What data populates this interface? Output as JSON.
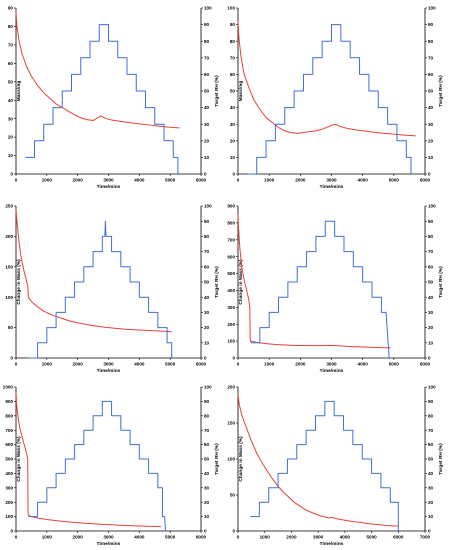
{
  "figure": {
    "colors": {
      "mass": "#e8403a",
      "rh": "#3f6fd6",
      "axis": "#000000"
    }
  },
  "chart_data": [
    {
      "type": "line",
      "xlabel": "Time/mins",
      "ylabel": "Mass/mg",
      "y2label": "Target RH (%)",
      "xlim": [
        0,
        6000
      ],
      "ylim": [
        0,
        90
      ],
      "y2lim": [
        0,
        100
      ],
      "xticks": [
        "0",
        "1000",
        "2000",
        "3000",
        "4000",
        "5000",
        "6000"
      ],
      "yticks": [
        "0",
        "10",
        "20",
        "30",
        "40",
        "50",
        "60",
        "70",
        "80",
        "90"
      ],
      "y2ticks": [
        "0",
        "10",
        "20",
        "30",
        "40",
        "50",
        "60",
        "70",
        "80",
        "90",
        "100"
      ],
      "series": [
        {
          "axis": "left",
          "x": [
            0,
            30,
            100,
            200,
            350,
            500,
            700,
            900,
            1100,
            1300,
            1500,
            1700,
            1900,
            2100,
            2300,
            2500,
            2650,
            2750,
            2900,
            3100,
            3400,
            3700,
            4000,
            4300,
            4600,
            4900,
            5100,
            5300
          ],
          "y": [
            88,
            80,
            72,
            65,
            58,
            53,
            48,
            44,
            41,
            38,
            36,
            34,
            32,
            30.5,
            29.5,
            29,
            30.5,
            31.5,
            30.2,
            29.3,
            28.5,
            27.8,
            27.2,
            26.6,
            26.0,
            25.5,
            25.2,
            25.0
          ]
        },
        {
          "axis": "right",
          "x": [
            300,
            600,
            600,
            900,
            900,
            1200,
            1200,
            1500,
            1500,
            1800,
            1800,
            2100,
            2100,
            2400,
            2400,
            2700,
            2700,
            3000,
            3000,
            3300,
            3300,
            3600,
            3600,
            3900,
            3900,
            4200,
            4200,
            4500,
            4500,
            4800,
            4800,
            5100,
            5100,
            5250,
            5250
          ],
          "y": [
            10,
            10,
            20,
            20,
            30,
            30,
            40,
            40,
            50,
            50,
            60,
            60,
            70,
            70,
            80,
            80,
            90,
            90,
            80,
            80,
            70,
            70,
            60,
            60,
            50,
            50,
            40,
            40,
            30,
            30,
            20,
            20,
            10,
            10,
            0
          ]
        }
      ]
    },
    {
      "type": "line",
      "xlabel": "Time/mins",
      "ylabel": "Mass/mg",
      "y2label": "Target RH (%)",
      "xlim": [
        0,
        6000
      ],
      "ylim": [
        0,
        100
      ],
      "y2lim": [
        0,
        100
      ],
      "xticks": [
        "0",
        "1000",
        "2000",
        "3000",
        "4000",
        "5000",
        "6000"
      ],
      "yticks": [
        "0",
        "10",
        "20",
        "30",
        "40",
        "50",
        "60",
        "70",
        "80",
        "90",
        "100"
      ],
      "y2ticks": [
        "0",
        "10",
        "20",
        "30",
        "40",
        "50",
        "60",
        "70",
        "80",
        "90",
        "100"
      ],
      "series": [
        {
          "axis": "left",
          "x": [
            0,
            30,
            100,
            200,
            350,
            500,
            700,
            900,
            1100,
            1300,
            1500,
            1700,
            1900,
            2100,
            2300,
            2500,
            2700,
            2900,
            3100,
            3300,
            3500,
            3800,
            4100,
            4400,
            4700,
            5000,
            5300,
            5700
          ],
          "y": [
            92,
            82,
            70,
            60,
            52,
            45,
            39,
            34,
            31,
            28,
            26,
            25,
            24.5,
            25,
            25.5,
            26,
            27,
            28.5,
            30,
            28.5,
            27.5,
            26.5,
            25.8,
            25,
            24.5,
            24,
            23.5,
            23
          ]
        },
        {
          "axis": "right",
          "x": [
            300,
            600,
            600,
            900,
            900,
            1200,
            1200,
            1500,
            1500,
            1800,
            1800,
            2100,
            2100,
            2400,
            2400,
            2700,
            2700,
            3000,
            3000,
            3300,
            3300,
            3600,
            3600,
            3900,
            3900,
            4200,
            4200,
            4500,
            4500,
            4800,
            4800,
            5100,
            5100,
            5400,
            5400,
            5550,
            5550
          ],
          "y": [
            0,
            0,
            10,
            10,
            20,
            20,
            30,
            30,
            40,
            40,
            50,
            50,
            60,
            60,
            70,
            70,
            80,
            80,
            90,
            90,
            80,
            80,
            70,
            70,
            60,
            60,
            50,
            50,
            40,
            40,
            30,
            30,
            20,
            20,
            10,
            10,
            0
          ]
        }
      ]
    },
    {
      "type": "line",
      "xlabel": "Time/mins",
      "ylabel": "Change in Mass (%)",
      "y2label": "Target RH (%)",
      "xlim": [
        0,
        6000
      ],
      "ylim": [
        0,
        250
      ],
      "y2lim": [
        0,
        100
      ],
      "xticks": [
        "0",
        "1000",
        "2000",
        "3000",
        "4000",
        "5000",
        "6000"
      ],
      "yticks": [
        "0",
        "50",
        "100",
        "150",
        "200",
        "250"
      ],
      "y2ticks": [
        "0",
        "10",
        "20",
        "30",
        "40",
        "50",
        "60",
        "70",
        "80",
        "90",
        "100"
      ],
      "series": [
        {
          "axis": "left",
          "x": [
            0,
            30,
            80,
            150,
            250,
            350,
            390,
            400,
            500,
            700,
            900,
            1200,
            1500,
            1800,
            2100,
            2400,
            2800,
            3200,
            3600,
            4000,
            4400,
            4800,
            5050
          ],
          "y": [
            245,
            225,
            200,
            170,
            145,
            125,
            115,
            100,
            93,
            84,
            77,
            70,
            65,
            60,
            57,
            54,
            51,
            49,
            47,
            46,
            45,
            44,
            43
          ]
        },
        {
          "axis": "right",
          "x": [
            400,
            700,
            700,
            1000,
            1000,
            1300,
            1300,
            1600,
            1600,
            1900,
            1900,
            2200,
            2200,
            2500,
            2500,
            2800,
            2800,
            2880,
            2900,
            2920,
            3100,
            3100,
            3400,
            3400,
            3700,
            3700,
            4000,
            4000,
            4300,
            4300,
            4600,
            4600,
            4900,
            4900,
            5050,
            5050
          ],
          "y": [
            0,
            0,
            10,
            10,
            20,
            20,
            30,
            30,
            40,
            40,
            50,
            50,
            60,
            60,
            70,
            70,
            80,
            80,
            90,
            80,
            80,
            70,
            70,
            60,
            60,
            50,
            50,
            40,
            40,
            30,
            30,
            20,
            20,
            10,
            10,
            0
          ]
        }
      ]
    },
    {
      "type": "line",
      "xlabel": "Time/mins",
      "ylabel": "Change in Mass (%)",
      "y2label": "Target RH (%)",
      "xlim": [
        0,
        6000
      ],
      "ylim": [
        0,
        900
      ],
      "y2lim": [
        0,
        100
      ],
      "xticks": [
        "0",
        "1000",
        "2000",
        "3000",
        "4000",
        "5000",
        "6000"
      ],
      "yticks": [
        "0",
        "100",
        "200",
        "300",
        "400",
        "500",
        "600",
        "700",
        "800",
        "900"
      ],
      "y2ticks": [
        "0",
        "10",
        "20",
        "30",
        "40",
        "50",
        "60",
        "70",
        "80",
        "90",
        "100"
      ],
      "series": [
        {
          "axis": "left",
          "x": [
            0,
            20,
            60,
            120,
            200,
            280,
            340,
            380,
            390,
            400,
            600,
            900,
            1200,
            1500,
            1800,
            2100,
            2400,
            2700,
            3000,
            3300,
            3600,
            4000,
            4400,
            4900
          ],
          "y": [
            850,
            760,
            650,
            540,
            460,
            400,
            350,
            300,
            120,
            100,
            92,
            85,
            80,
            77,
            75,
            74,
            73,
            73,
            75,
            71,
            68,
            65,
            62,
            60
          ]
        },
        {
          "axis": "right",
          "x": [
            400,
            700,
            700,
            1000,
            1000,
            1300,
            1300,
            1600,
            1600,
            1900,
            1900,
            2200,
            2200,
            2500,
            2500,
            2800,
            2800,
            3100,
            3100,
            3400,
            3400,
            3700,
            3700,
            4000,
            4000,
            4300,
            4300,
            4600,
            4600,
            4750,
            4850
          ],
          "y": [
            10,
            10,
            20,
            20,
            30,
            30,
            40,
            40,
            50,
            50,
            60,
            60,
            70,
            70,
            80,
            80,
            90,
            90,
            80,
            80,
            70,
            70,
            60,
            60,
            50,
            50,
            40,
            40,
            30,
            30,
            0
          ]
        }
      ]
    },
    {
      "type": "line",
      "xlabel": "Time/mins",
      "ylabel": "Change in Mass (%)",
      "y2label": "Target RH (%)",
      "xlim": [
        0,
        6000
      ],
      "ylim": [
        0,
        1000
      ],
      "y2lim": [
        0,
        100
      ],
      "xticks": [
        "0",
        "1000",
        "2000",
        "3000",
        "4000",
        "5000",
        "6000"
      ],
      "yticks": [
        "0",
        "100",
        "200",
        "300",
        "400",
        "500",
        "600",
        "700",
        "800",
        "900",
        "1000"
      ],
      "y2ticks": [
        "0",
        "10",
        "20",
        "30",
        "40",
        "50",
        "60",
        "70",
        "80",
        "90",
        "100"
      ],
      "series": [
        {
          "axis": "left",
          "x": [
            0,
            20,
            60,
            120,
            200,
            280,
            340,
            380,
            390,
            400,
            500,
            700,
            1000,
            1300,
            1600,
            1900,
            2200,
            2500,
            2800,
            3100,
            3400,
            3700,
            4000,
            4300,
            4700
          ],
          "y": [
            960,
            880,
            800,
            720,
            650,
            590,
            540,
            500,
            130,
            110,
            100,
            90,
            80,
            72,
            65,
            60,
            55,
            50,
            46,
            43,
            40,
            37,
            35,
            33,
            30
          ]
        },
        {
          "axis": "right",
          "x": [
            400,
            700,
            700,
            1000,
            1000,
            1300,
            1300,
            1600,
            1600,
            1900,
            1900,
            2200,
            2200,
            2500,
            2500,
            2800,
            2800,
            3100,
            3100,
            3400,
            3400,
            3700,
            3700,
            4000,
            4000,
            4300,
            4300,
            4600,
            4600,
            4750,
            4750,
            4820,
            4850
          ],
          "y": [
            10,
            10,
            20,
            20,
            30,
            30,
            40,
            40,
            50,
            50,
            60,
            60,
            70,
            70,
            80,
            80,
            90,
            90,
            80,
            80,
            70,
            70,
            60,
            60,
            50,
            50,
            40,
            40,
            30,
            30,
            10,
            10,
            0
          ]
        }
      ]
    },
    {
      "type": "line",
      "xlabel": "Time/mins",
      "ylabel": "Change in Mass (%)",
      "y2label": "Target RH (%)",
      "xlim": [
        0,
        7000
      ],
      "ylim": [
        0,
        200
      ],
      "y2lim": [
        0,
        100
      ],
      "xticks": [
        "0",
        "1000",
        "2000",
        "3000",
        "4000",
        "5000",
        "6000",
        "7000"
      ],
      "yticks": [
        "0",
        "50",
        "100",
        "150",
        "200"
      ],
      "y2ticks": [
        "0",
        "10",
        "20",
        "30",
        "40",
        "50",
        "60",
        "70",
        "80",
        "90",
        "100"
      ],
      "series": [
        {
          "axis": "left",
          "x": [
            0,
            50,
            150,
            300,
            500,
            700,
            900,
            1100,
            1300,
            1500,
            1700,
            1900,
            2100,
            2300,
            2500,
            2800,
            3100,
            3400,
            3500,
            3700,
            4000,
            4300,
            4600,
            4900,
            5200,
            5500,
            5800,
            6000
          ],
          "y": [
            190,
            175,
            160,
            145,
            125,
            108,
            95,
            83,
            72,
            62,
            54,
            47,
            40,
            35,
            30,
            25,
            21,
            18,
            19,
            17,
            15,
            13,
            12,
            10,
            9,
            8,
            7,
            7
          ]
        },
        {
          "axis": "right",
          "x": [
            450,
            800,
            800,
            1150,
            1150,
            1500,
            1500,
            1850,
            1850,
            2200,
            2200,
            2550,
            2550,
            2900,
            2900,
            3250,
            3250,
            3600,
            3600,
            3950,
            3950,
            4300,
            4300,
            4650,
            4650,
            5000,
            5000,
            5350,
            5350,
            5700,
            5700,
            6000,
            6000
          ],
          "y": [
            10,
            10,
            20,
            20,
            30,
            30,
            40,
            40,
            50,
            50,
            60,
            60,
            70,
            70,
            80,
            80,
            90,
            90,
            80,
            80,
            70,
            70,
            60,
            60,
            50,
            50,
            40,
            40,
            30,
            30,
            20,
            20,
            0
          ]
        }
      ]
    }
  ]
}
